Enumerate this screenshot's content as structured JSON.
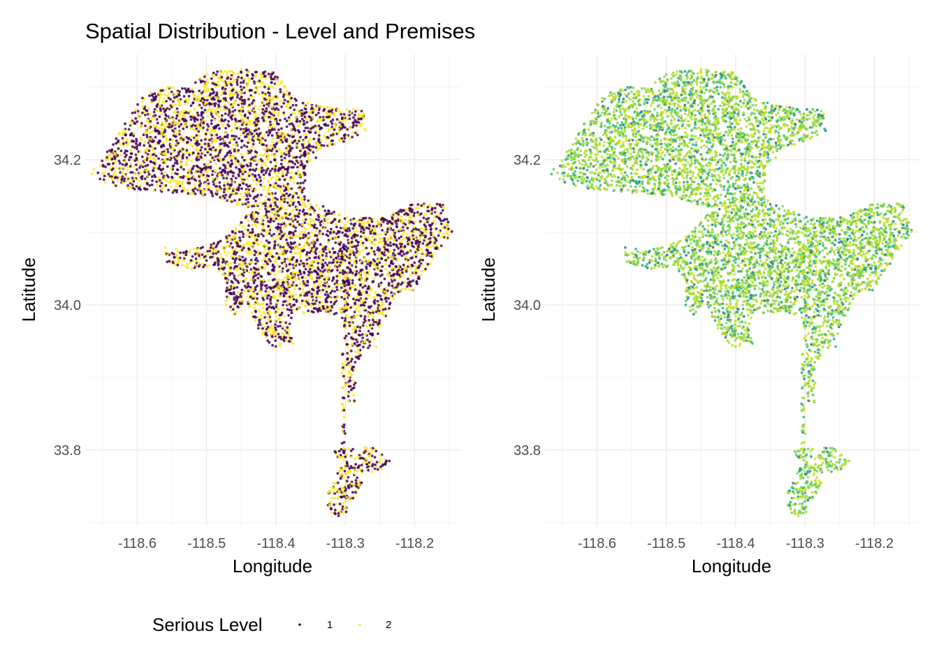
{
  "chart_data": {
    "title": "Spatial Distribution - Level and Premises",
    "panels": [
      {
        "type": "scatter",
        "xlabel": "Longitude",
        "ylabel": "Latitude",
        "xlim": [
          -118.675,
          -118.135
        ],
        "ylim": [
          33.695,
          34.345
        ],
        "x_ticks": [
          -118.6,
          -118.5,
          -118.4,
          -118.3,
          -118.2
        ],
        "x_tick_labels": [
          "-118.6",
          "-118.5",
          "-118.4",
          "-118.3",
          "-118.2"
        ],
        "y_ticks": [
          33.8,
          34.0,
          34.2
        ],
        "y_tick_labels": [
          "33.8",
          "34.0",
          "34.2"
        ],
        "grid": true,
        "color_by": "serious_level",
        "colors": [
          "#440154",
          "#fde725"
        ]
      },
      {
        "type": "scatter",
        "xlabel": "Longitude",
        "ylabel": "Latitude",
        "xlim": [
          -118.675,
          -118.135
        ],
        "ylim": [
          33.695,
          34.345
        ],
        "x_ticks": [
          -118.6,
          -118.5,
          -118.4,
          -118.3,
          -118.2
        ],
        "x_tick_labels": [
          "-118.6",
          "-118.5",
          "-118.4",
          "-118.3",
          "-118.2"
        ],
        "y_ticks": [
          33.8,
          34.0,
          34.2
        ],
        "y_tick_labels": [
          "33.8",
          "34.0",
          "34.2"
        ],
        "grid": true,
        "color_by": "premises",
        "colors": [
          "#a0da39",
          "#c2df23",
          "#7ad151",
          "#4ac16d",
          "#22a884",
          "#2a788e",
          "#2fb47c",
          "#d8e219"
        ]
      }
    ],
    "region_polygons": [
      {
        "part": "north",
        "lonlat": [
          [
            -118.668,
            34.18
          ],
          [
            -118.64,
            34.215
          ],
          [
            -118.615,
            34.255
          ],
          [
            -118.59,
            34.29
          ],
          [
            -118.56,
            34.3
          ],
          [
            -118.53,
            34.3
          ],
          [
            -118.5,
            34.32
          ],
          [
            -118.45,
            34.325
          ],
          [
            -118.395,
            34.32
          ],
          [
            -118.375,
            34.285
          ],
          [
            -118.34,
            34.275
          ],
          [
            -118.31,
            34.27
          ],
          [
            -118.27,
            34.27
          ],
          [
            -118.27,
            34.24
          ],
          [
            -118.3,
            34.225
          ],
          [
            -118.33,
            34.215
          ],
          [
            -118.355,
            34.19
          ],
          [
            -118.36,
            34.15
          ],
          [
            -118.32,
            34.13
          ],
          [
            -118.29,
            34.12
          ],
          [
            -118.25,
            34.12
          ],
          [
            -118.2,
            34.14
          ],
          [
            -118.16,
            34.14
          ],
          [
            -118.145,
            34.1
          ],
          [
            -118.17,
            34.07
          ],
          [
            -118.18,
            34.05
          ],
          [
            -118.19,
            34.04
          ],
          [
            -118.2,
            34.02
          ],
          [
            -118.215,
            34.02
          ],
          [
            -118.23,
            34.01
          ],
          [
            -118.235,
            33.995
          ],
          [
            -118.25,
            33.97
          ],
          [
            -118.255,
            33.94
          ],
          [
            -118.27,
            33.94
          ],
          [
            -118.28,
            33.925
          ],
          [
            -118.29,
            33.925
          ],
          [
            -118.3,
            33.945
          ],
          [
            -118.305,
            33.985
          ],
          [
            -118.33,
            33.99
          ],
          [
            -118.37,
            33.985
          ],
          [
            -118.38,
            33.97
          ],
          [
            -118.375,
            33.945
          ],
          [
            -118.4,
            33.94
          ],
          [
            -118.415,
            33.95
          ],
          [
            -118.43,
            33.975
          ],
          [
            -118.44,
            34.0
          ],
          [
            -118.45,
            34.0
          ],
          [
            -118.46,
            33.985
          ],
          [
            -118.475,
            34.0
          ],
          [
            -118.47,
            34.03
          ],
          [
            -118.49,
            34.05
          ],
          [
            -118.53,
            34.05
          ],
          [
            -118.56,
            34.06
          ],
          [
            -118.56,
            34.08
          ],
          [
            -118.525,
            34.075
          ],
          [
            -118.49,
            34.085
          ],
          [
            -118.47,
            34.095
          ],
          [
            -118.445,
            34.12
          ],
          [
            -118.44,
            34.135
          ],
          [
            -118.5,
            34.15
          ],
          [
            -118.56,
            34.155
          ],
          [
            -118.61,
            34.16
          ],
          [
            -118.64,
            34.165
          ]
        ]
      },
      {
        "part": "corridor",
        "lonlat": [
          [
            -118.305,
            33.935
          ],
          [
            -118.285,
            33.935
          ],
          [
            -118.285,
            33.865
          ],
          [
            -118.3,
            33.865
          ],
          [
            -118.3,
            33.8
          ],
          [
            -118.305,
            33.8
          ]
        ]
      },
      {
        "part": "harbor",
        "lonlat": [
          [
            -118.32,
            33.8
          ],
          [
            -118.26,
            33.805
          ],
          [
            -118.235,
            33.785
          ],
          [
            -118.25,
            33.77
          ],
          [
            -118.27,
            33.77
          ],
          [
            -118.28,
            33.745
          ],
          [
            -118.29,
            33.72
          ],
          [
            -118.31,
            33.705
          ],
          [
            -118.325,
            33.715
          ],
          [
            -118.325,
            33.745
          ],
          [
            -118.31,
            33.77
          ],
          [
            -118.31,
            33.785
          ]
        ]
      }
    ],
    "point_count_per_panel": 6000,
    "legend": {
      "title": "Serious Level",
      "entries": [
        {
          "label": "1",
          "color": "#440154"
        },
        {
          "label": "2",
          "color": "#fde725"
        }
      ],
      "placement": "bottom"
    }
  }
}
